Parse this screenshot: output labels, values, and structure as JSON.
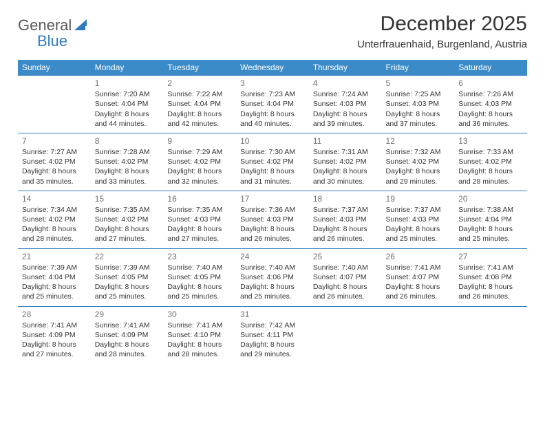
{
  "logo": {
    "text1": "General",
    "text2": "Blue",
    "mark_color": "#2f7bbf"
  },
  "title": "December 2025",
  "location": "Unterfrauenhaid, Burgenland, Austria",
  "header_bg": "#3b8bc9",
  "rule_color": "#2f7bbf",
  "weekdays": [
    "Sunday",
    "Monday",
    "Tuesday",
    "Wednesday",
    "Thursday",
    "Friday",
    "Saturday"
  ],
  "weeks": [
    [
      null,
      {
        "n": "1",
        "sr": "7:20 AM",
        "ss": "4:04 PM",
        "dl": "8 hours and 44 minutes."
      },
      {
        "n": "2",
        "sr": "7:22 AM",
        "ss": "4:04 PM",
        "dl": "8 hours and 42 minutes."
      },
      {
        "n": "3",
        "sr": "7:23 AM",
        "ss": "4:04 PM",
        "dl": "8 hours and 40 minutes."
      },
      {
        "n": "4",
        "sr": "7:24 AM",
        "ss": "4:03 PM",
        "dl": "8 hours and 39 minutes."
      },
      {
        "n": "5",
        "sr": "7:25 AM",
        "ss": "4:03 PM",
        "dl": "8 hours and 37 minutes."
      },
      {
        "n": "6",
        "sr": "7:26 AM",
        "ss": "4:03 PM",
        "dl": "8 hours and 36 minutes."
      }
    ],
    [
      {
        "n": "7",
        "sr": "7:27 AM",
        "ss": "4:02 PM",
        "dl": "8 hours and 35 minutes."
      },
      {
        "n": "8",
        "sr": "7:28 AM",
        "ss": "4:02 PM",
        "dl": "8 hours and 33 minutes."
      },
      {
        "n": "9",
        "sr": "7:29 AM",
        "ss": "4:02 PM",
        "dl": "8 hours and 32 minutes."
      },
      {
        "n": "10",
        "sr": "7:30 AM",
        "ss": "4:02 PM",
        "dl": "8 hours and 31 minutes."
      },
      {
        "n": "11",
        "sr": "7:31 AM",
        "ss": "4:02 PM",
        "dl": "8 hours and 30 minutes."
      },
      {
        "n": "12",
        "sr": "7:32 AM",
        "ss": "4:02 PM",
        "dl": "8 hours and 29 minutes."
      },
      {
        "n": "13",
        "sr": "7:33 AM",
        "ss": "4:02 PM",
        "dl": "8 hours and 28 minutes."
      }
    ],
    [
      {
        "n": "14",
        "sr": "7:34 AM",
        "ss": "4:02 PM",
        "dl": "8 hours and 28 minutes."
      },
      {
        "n": "15",
        "sr": "7:35 AM",
        "ss": "4:02 PM",
        "dl": "8 hours and 27 minutes."
      },
      {
        "n": "16",
        "sr": "7:35 AM",
        "ss": "4:03 PM",
        "dl": "8 hours and 27 minutes."
      },
      {
        "n": "17",
        "sr": "7:36 AM",
        "ss": "4:03 PM",
        "dl": "8 hours and 26 minutes."
      },
      {
        "n": "18",
        "sr": "7:37 AM",
        "ss": "4:03 PM",
        "dl": "8 hours and 26 minutes."
      },
      {
        "n": "19",
        "sr": "7:37 AM",
        "ss": "4:03 PM",
        "dl": "8 hours and 25 minutes."
      },
      {
        "n": "20",
        "sr": "7:38 AM",
        "ss": "4:04 PM",
        "dl": "8 hours and 25 minutes."
      }
    ],
    [
      {
        "n": "21",
        "sr": "7:39 AM",
        "ss": "4:04 PM",
        "dl": "8 hours and 25 minutes."
      },
      {
        "n": "22",
        "sr": "7:39 AM",
        "ss": "4:05 PM",
        "dl": "8 hours and 25 minutes."
      },
      {
        "n": "23",
        "sr": "7:40 AM",
        "ss": "4:05 PM",
        "dl": "8 hours and 25 minutes."
      },
      {
        "n": "24",
        "sr": "7:40 AM",
        "ss": "4:06 PM",
        "dl": "8 hours and 25 minutes."
      },
      {
        "n": "25",
        "sr": "7:40 AM",
        "ss": "4:07 PM",
        "dl": "8 hours and 26 minutes."
      },
      {
        "n": "26",
        "sr": "7:41 AM",
        "ss": "4:07 PM",
        "dl": "8 hours and 26 minutes."
      },
      {
        "n": "27",
        "sr": "7:41 AM",
        "ss": "4:08 PM",
        "dl": "8 hours and 26 minutes."
      }
    ],
    [
      {
        "n": "28",
        "sr": "7:41 AM",
        "ss": "4:09 PM",
        "dl": "8 hours and 27 minutes."
      },
      {
        "n": "29",
        "sr": "7:41 AM",
        "ss": "4:09 PM",
        "dl": "8 hours and 28 minutes."
      },
      {
        "n": "30",
        "sr": "7:41 AM",
        "ss": "4:10 PM",
        "dl": "8 hours and 28 minutes."
      },
      {
        "n": "31",
        "sr": "7:42 AM",
        "ss": "4:11 PM",
        "dl": "8 hours and 29 minutes."
      },
      null,
      null,
      null
    ]
  ],
  "labels": {
    "sunrise": "Sunrise:",
    "sunset": "Sunset:",
    "daylight": "Daylight:"
  }
}
